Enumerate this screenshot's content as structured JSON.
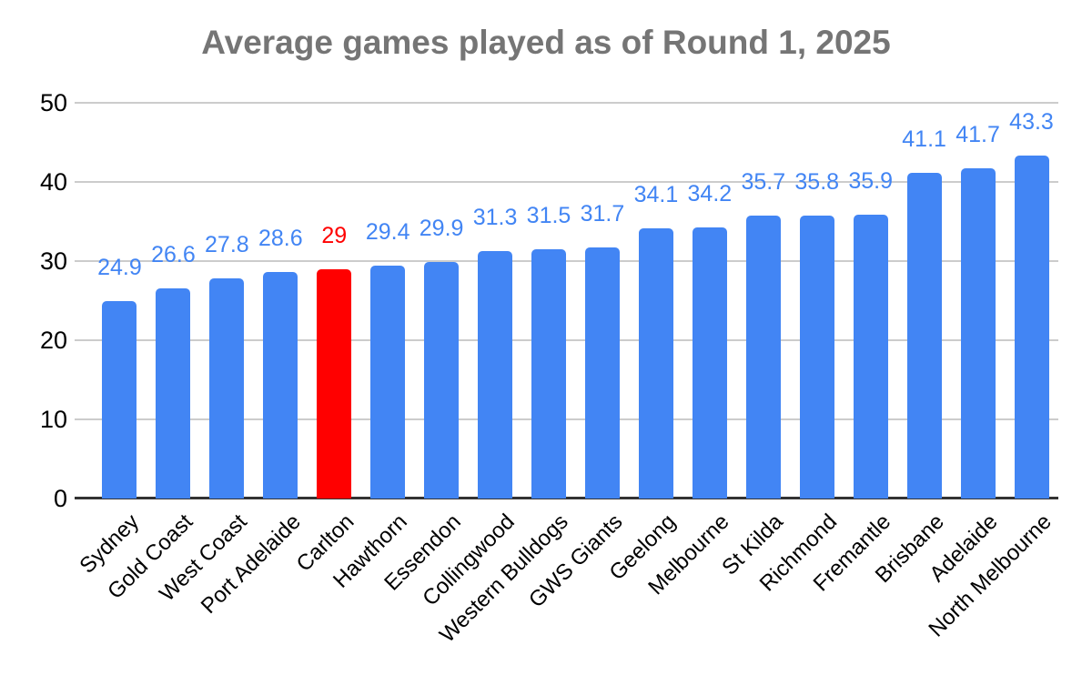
{
  "chart_data": {
    "type": "bar",
    "title": "Average games played as of Round 1, 2025",
    "categories": [
      "Sydney",
      "Gold Coast",
      "West Coast",
      "Port Adelaide",
      "Carlton",
      "Hawthorn",
      "Essendon",
      "Collingwood",
      "Western Bulldogs",
      "GWS Giants",
      "Geelong",
      "Melbourne",
      "St Kilda",
      "Richmond",
      "Fremantle",
      "Brisbane",
      "Adelaide",
      "North Melbourne"
    ],
    "values": [
      24.9,
      26.6,
      27.8,
      28.6,
      29,
      29.4,
      29.9,
      31.3,
      31.5,
      31.7,
      34.1,
      34.2,
      35.7,
      35.8,
      35.9,
      41.1,
      41.7,
      43.3
    ],
    "value_labels": [
      "24.9",
      "26.6",
      "27.8",
      "28.6",
      "29",
      "29.4",
      "29.9",
      "31.3",
      "31.5",
      "31.7",
      "34.1",
      "34.2",
      "35.7",
      "35.8",
      "35.9",
      "41.1",
      "41.7",
      "43.3"
    ],
    "highlight_category": "Carlton",
    "highlight_index": 4,
    "xlabel": "",
    "ylabel": "",
    "ylim": [
      0,
      50
    ],
    "yticks": [
      0,
      10,
      20,
      30,
      40,
      50
    ],
    "grid": true,
    "legend": "none",
    "label_position": "above-bars",
    "colors": {
      "bar": "#4285f4",
      "highlight_bar": "#ff0000",
      "value_label": "#4285f4",
      "highlight_value_label": "#ff0000",
      "title": "#757575",
      "axis_text": "#000000",
      "gridline": "#cccccc",
      "baseline": "#333333",
      "background": "#ffffff"
    }
  }
}
